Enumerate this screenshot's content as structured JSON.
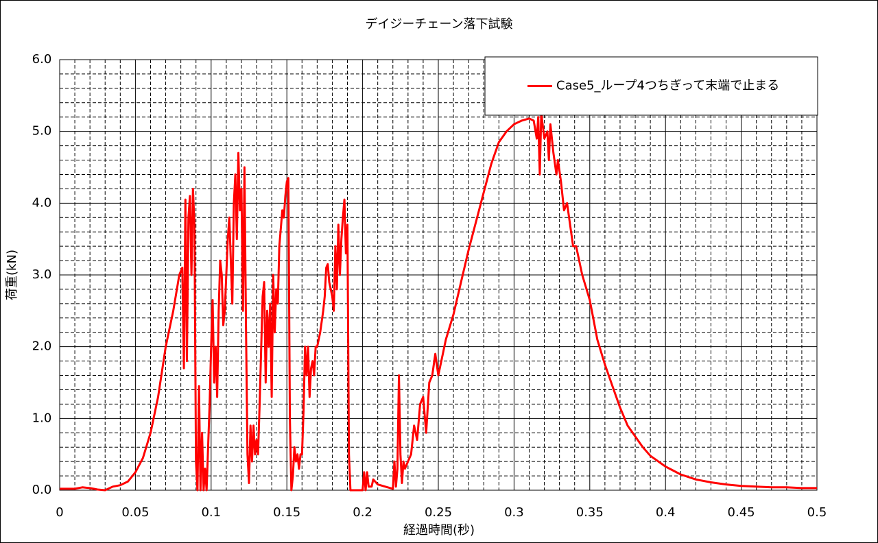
{
  "chart_data": {
    "type": "line",
    "title": "デイジーチェーン落下試験",
    "x_label": "経過時間(秒)",
    "y_label": "荷重(kN)",
    "xlim": [
      0,
      0.5
    ],
    "ylim": [
      0,
      6
    ],
    "xticks": [
      0,
      0.05,
      0.1,
      0.15,
      0.2,
      0.25,
      0.3,
      0.35,
      0.4,
      0.45,
      0.5
    ],
    "yticks": [
      {
        "value": 0,
        "label": "0.0"
      },
      {
        "value": 1,
        "label": "1.0"
      },
      {
        "value": 2,
        "label": "2.0"
      },
      {
        "value": 3,
        "label": "3.0"
      },
      {
        "value": 4,
        "label": "4.0"
      },
      {
        "value": 5,
        "label": "5.0"
      },
      {
        "value": 6,
        "label": "6.0"
      }
    ],
    "xminorticks": [
      0.01,
      0.02,
      0.03,
      0.04,
      0.06,
      0.07,
      0.08,
      0.09,
      0.11,
      0.12,
      0.13,
      0.14,
      0.16,
      0.17,
      0.18,
      0.19,
      0.21,
      0.22,
      0.23,
      0.24,
      0.26,
      0.27,
      0.28,
      0.29,
      0.31,
      0.32,
      0.33,
      0.34,
      0.36,
      0.37,
      0.38,
      0.39,
      0.41,
      0.42,
      0.43,
      0.44,
      0.46,
      0.47,
      0.48,
      0.49
    ],
    "yminorticks": [
      0.2,
      0.4,
      0.6,
      0.8,
      1.2,
      1.4,
      1.6,
      1.8,
      2.2,
      2.4,
      2.6,
      2.8,
      3.2,
      3.4,
      3.6,
      3.8,
      4.2,
      4.4,
      4.6,
      4.8,
      5.2,
      5.4,
      5.6,
      5.8
    ],
    "grid": true,
    "legend": "upper right",
    "x": [
      0,
      0.01,
      0.015,
      0.02,
      0.025,
      0.03,
      0.035,
      0.04,
      0.045,
      0.05,
      0.055,
      0.06,
      0.065,
      0.07,
      0.075,
      0.079,
      0.081,
      0.082,
      0.083,
      0.084,
      0.085,
      0.086,
      0.087,
      0.088,
      0.089,
      0.09,
      0.091,
      0.092,
      0.093,
      0.094,
      0.095,
      0.096,
      0.097,
      0.099,
      0.1,
      0.101,
      0.102,
      0.103,
      0.104,
      0.105,
      0.106,
      0.107,
      0.108,
      0.109,
      0.11,
      0.111,
      0.112,
      0.113,
      0.114,
      0.115,
      0.116,
      0.117,
      0.118,
      0.119,
      0.12,
      0.121,
      0.122,
      0.123,
      0.124,
      0.125,
      0.126,
      0.127,
      0.128,
      0.129,
      0.13,
      0.131,
      0.132,
      0.134,
      0.135,
      0.136,
      0.137,
      0.138,
      0.139,
      0.14,
      0.141,
      0.142,
      0.143,
      0.144,
      0.145,
      0.147,
      0.148,
      0.149,
      0.15,
      0.151,
      0.152,
      0.153,
      0.154,
      0.155,
      0.156,
      0.157,
      0.158,
      0.159,
      0.16,
      0.161,
      0.162,
      0.163,
      0.164,
      0.165,
      0.166,
      0.167,
      0.168,
      0.169,
      0.17,
      0.172,
      0.174,
      0.175,
      0.176,
      0.177,
      0.178,
      0.18,
      0.181,
      0.182,
      0.183,
      0.184,
      0.185,
      0.186,
      0.187,
      0.188,
      0.189,
      0.19,
      0.191,
      0.192,
      0.195,
      0.2,
      0.201,
      0.202,
      0.203,
      0.204,
      0.206,
      0.207,
      0.21,
      0.215,
      0.22,
      0.221,
      0.222,
      0.223,
      0.224,
      0.225,
      0.226,
      0.227,
      0.228,
      0.23,
      0.232,
      0.234,
      0.236,
      0.238,
      0.24,
      0.242,
      0.244,
      0.246,
      0.248,
      0.25,
      0.252,
      0.255,
      0.26,
      0.265,
      0.27,
      0.275,
      0.28,
      0.285,
      0.29,
      0.295,
      0.3,
      0.305,
      0.31,
      0.313,
      0.315,
      0.316,
      0.317,
      0.318,
      0.32,
      0.322,
      0.323,
      0.324,
      0.326,
      0.328,
      0.329,
      0.331,
      0.333,
      0.335,
      0.337,
      0.339,
      0.341,
      0.345,
      0.35,
      0.355,
      0.36,
      0.365,
      0.37,
      0.375,
      0.38,
      0.385,
      0.39,
      0.4,
      0.41,
      0.42,
      0.43,
      0.44,
      0.45,
      0.46,
      0.47,
      0.48,
      0.49,
      0.5
    ],
    "series": [
      {
        "name": "Case5_ループ4つちぎって末端で止まる",
        "color": "#ff0000",
        "values": [
          0.02,
          0.02,
          0.04,
          0.03,
          0.01,
          0.0,
          0.05,
          0.07,
          0.12,
          0.25,
          0.45,
          0.8,
          1.3,
          2.0,
          2.5,
          3.0,
          3.1,
          1.7,
          4.05,
          1.8,
          3.8,
          4.1,
          3.0,
          4.2,
          3.7,
          0.4,
          0.0,
          1.45,
          0.0,
          0.8,
          0.0,
          0.3,
          0.0,
          1.2,
          2.0,
          2.65,
          1.5,
          2.0,
          1.3,
          2.5,
          3.2,
          3.0,
          2.3,
          2.5,
          3.0,
          3.5,
          3.8,
          3.2,
          2.6,
          4.0,
          4.4,
          3.5,
          4.7,
          3.9,
          4.2,
          2.5,
          4.5,
          2.3,
          0.5,
          0.1,
          0.9,
          0.4,
          0.9,
          0.5,
          0.7,
          0.5,
          1.2,
          2.7,
          2.9,
          1.5,
          2.5,
          2.0,
          2.6,
          1.3,
          3.0,
          2.2,
          2.8,
          2.6,
          3.4,
          3.9,
          3.8,
          4.1,
          4.3,
          4.35,
          1.0,
          0.0,
          0.2,
          0.6,
          0.4,
          0.5,
          0.3,
          0.5,
          0.5,
          1.1,
          2.0,
          1.6,
          2.0,
          1.3,
          1.7,
          1.8,
          1.6,
          2.0,
          2.0,
          2.2,
          2.5,
          2.7,
          3.1,
          3.15,
          2.9,
          2.7,
          2.5,
          3.4,
          2.8,
          3.7,
          3.0,
          3.5,
          3.8,
          4.05,
          3.3,
          3.7,
          0.5,
          0.0,
          0.0,
          0.0,
          0.25,
          0.0,
          0.25,
          0.05,
          0.05,
          0.15,
          0.08,
          0.05,
          0.02,
          0.4,
          0.05,
          0.3,
          1.6,
          0.5,
          0.1,
          0.4,
          0.3,
          0.4,
          0.5,
          0.9,
          0.7,
          1.2,
          1.3,
          0.8,
          1.5,
          1.6,
          1.9,
          1.6,
          1.8,
          2.1,
          2.45,
          2.9,
          3.35,
          3.75,
          4.15,
          4.55,
          4.85,
          5.0,
          5.1,
          5.15,
          5.18,
          5.15,
          4.9,
          5.2,
          4.4,
          5.25,
          4.9,
          5.0,
          4.6,
          5.1,
          4.7,
          4.4,
          4.6,
          4.3,
          3.9,
          4.0,
          3.7,
          3.4,
          3.4,
          3.0,
          2.65,
          2.1,
          1.75,
          1.45,
          1.15,
          0.9,
          0.75,
          0.6,
          0.48,
          0.33,
          0.22,
          0.15,
          0.11,
          0.08,
          0.06,
          0.05,
          0.04,
          0.04,
          0.03,
          0.03
        ]
      }
    ]
  }
}
